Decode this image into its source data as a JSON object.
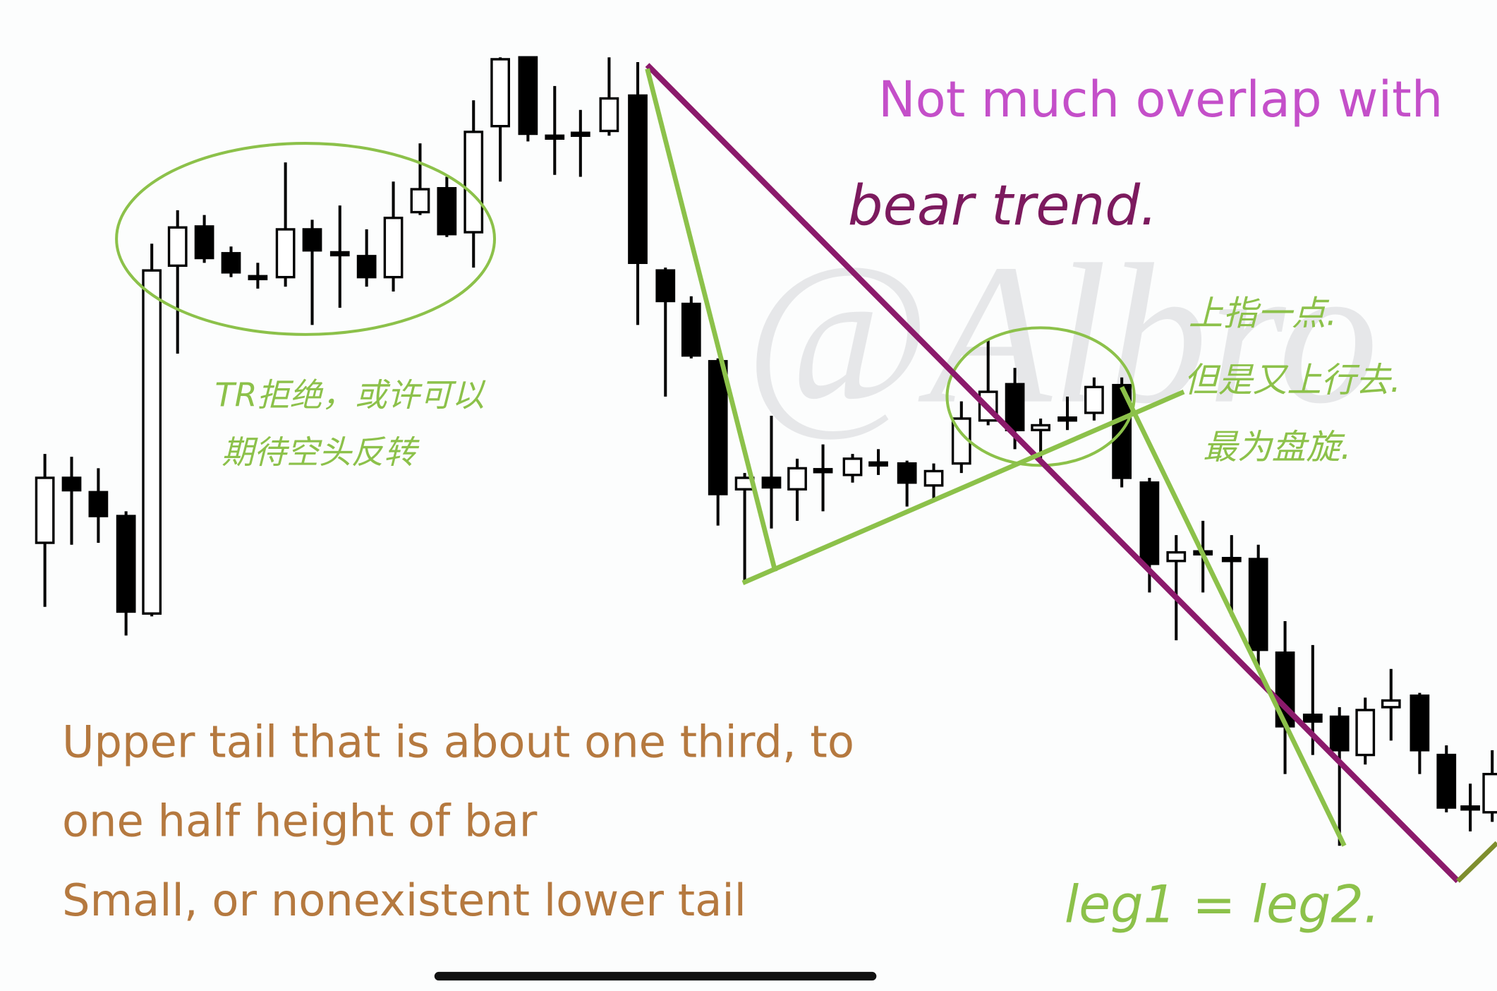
{
  "header": {
    "title": "Not much overlap with"
  },
  "annotations": {
    "trend": "bear trend.",
    "left_note": [
      "TR拒绝，或许可以",
      "期待空头反转"
    ],
    "right_note": [
      "上指一点.",
      "但是又上行去.",
      "最为盘旋."
    ],
    "legs": "leg1 = leg2.",
    "watermark": "@Albro"
  },
  "caption": [
    "Upper tail that is about one third, to",
    "one half height of bar",
    "Small, or nonexistent lower tail"
  ]
}
